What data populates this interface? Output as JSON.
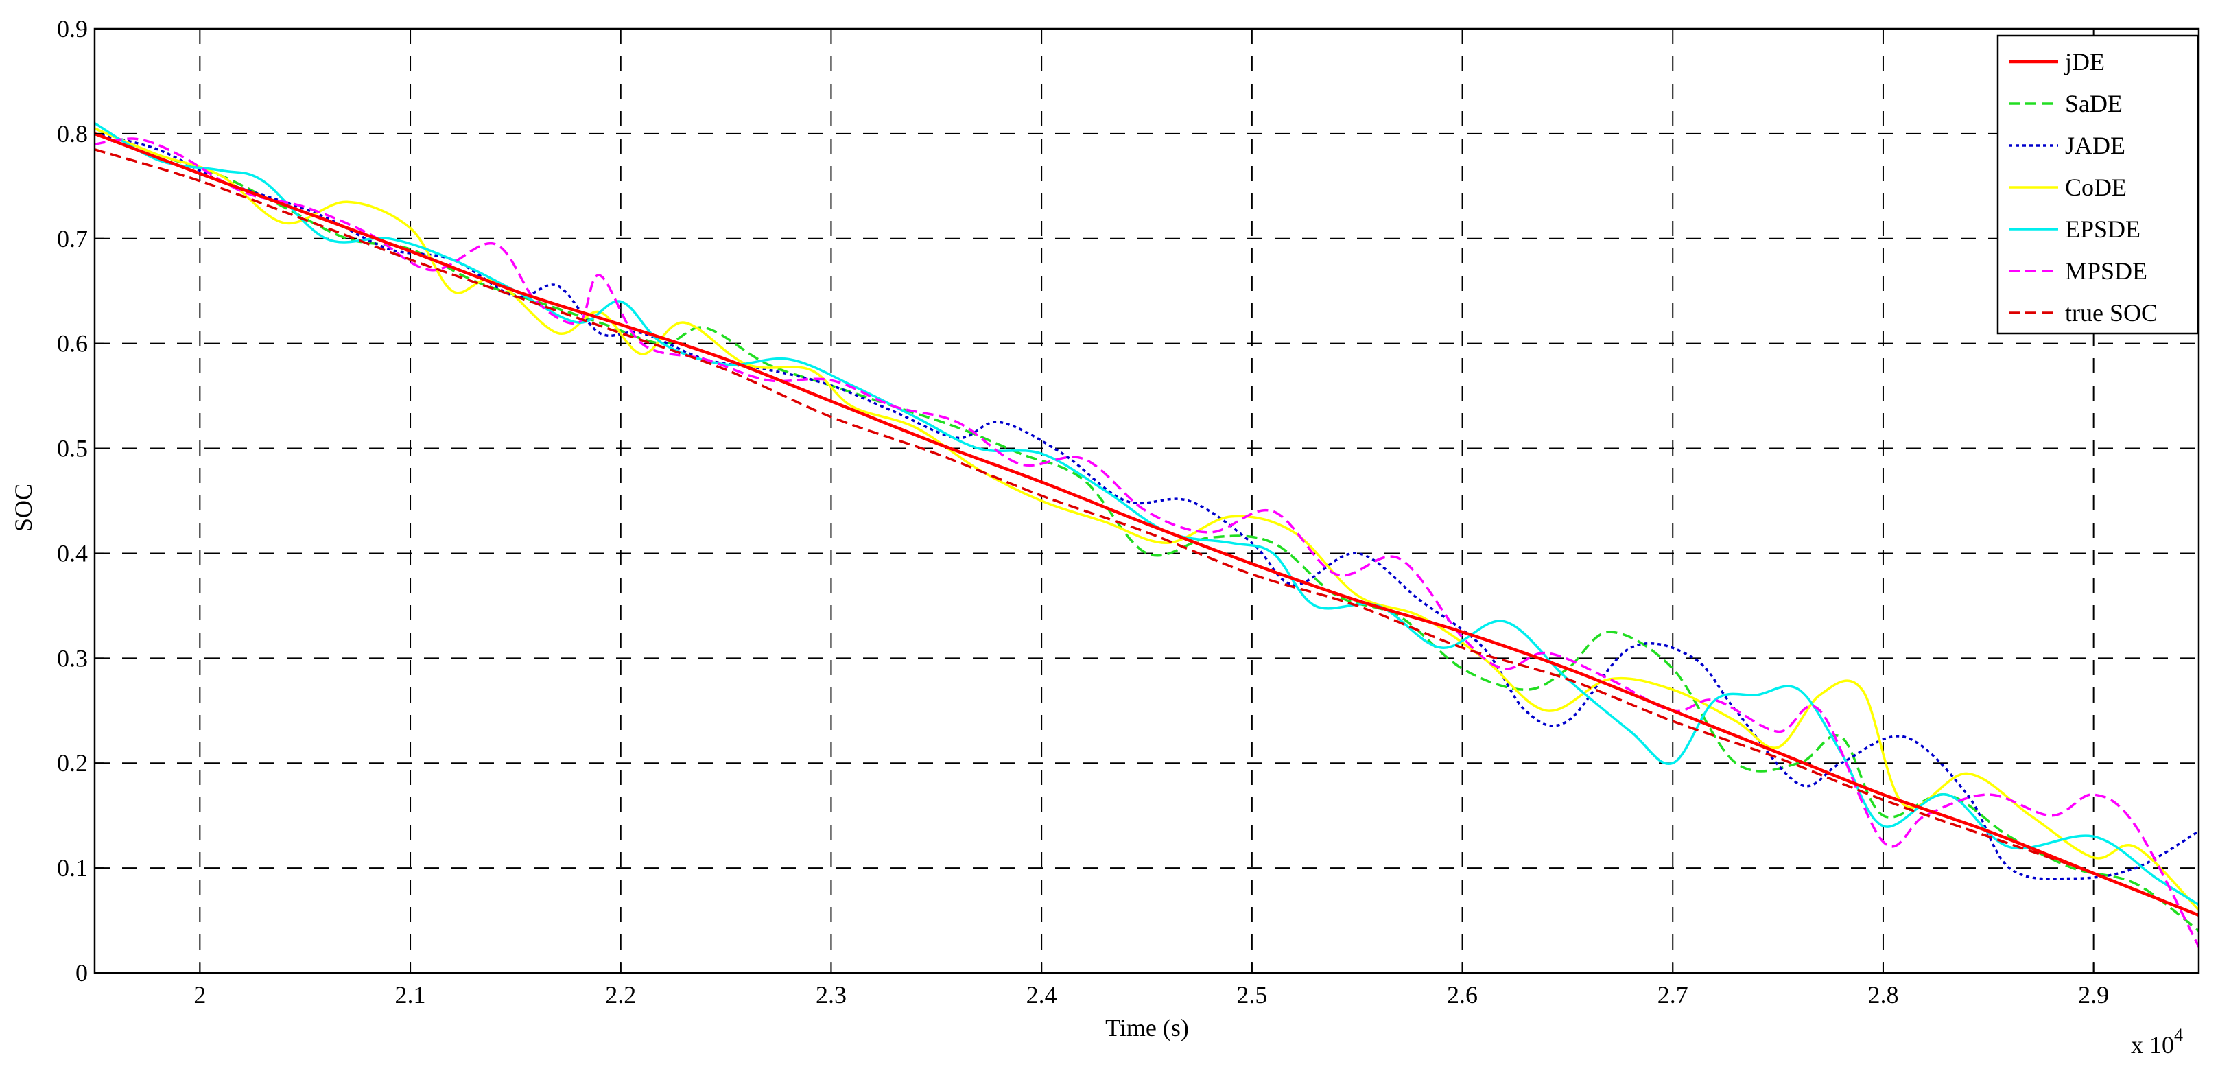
{
  "chart_data": {
    "type": "line",
    "title": "",
    "xlabel": "Time (s)",
    "ylabel": "SOC",
    "x_multiplier": "x 10",
    "x_multiplier_exponent": "4",
    "xlim": [
      1.95,
      2.95
    ],
    "ylim": [
      0,
      0.9
    ],
    "x_ticks": [
      2,
      2.1,
      2.2,
      2.3,
      2.4,
      2.5,
      2.6,
      2.7,
      2.8,
      2.9
    ],
    "x_tick_labels": [
      "2",
      "2.1",
      "2.2",
      "2.3",
      "2.4",
      "2.5",
      "2.6",
      "2.7",
      "2.8",
      "2.9"
    ],
    "y_ticks": [
      0,
      0.1,
      0.2,
      0.3,
      0.4,
      0.5,
      0.6,
      0.7,
      0.8,
      0.9
    ],
    "y_tick_labels": [
      "0",
      "0.1",
      "0.2",
      "0.3",
      "0.4",
      "0.5",
      "0.6",
      "0.7",
      "0.8",
      "0.9"
    ],
    "grid": true,
    "legend_position": "top-right",
    "series": [
      {
        "name": "jDE",
        "color": "#ff0000",
        "dash": "solid",
        "x": [
          1.95,
          2.0,
          2.05,
          2.1,
          2.15,
          2.2,
          2.25,
          2.3,
          2.35,
          2.4,
          2.45,
          2.5,
          2.55,
          2.6,
          2.65,
          2.7,
          2.75,
          2.8,
          2.85,
          2.9,
          2.95
        ],
        "y": [
          0.8,
          0.762,
          0.725,
          0.688,
          0.65,
          0.618,
          0.585,
          0.545,
          0.505,
          0.468,
          0.428,
          0.39,
          0.355,
          0.325,
          0.29,
          0.25,
          0.21,
          0.17,
          0.135,
          0.095,
          0.055
        ]
      },
      {
        "name": "SaDE",
        "color": "#22dd22",
        "dash": "dashed",
        "x": [
          1.95,
          1.98,
          2.01,
          2.04,
          2.07,
          2.1,
          2.13,
          2.16,
          2.19,
          2.22,
          2.24,
          2.27,
          2.3,
          2.33,
          2.36,
          2.39,
          2.42,
          2.45,
          2.48,
          2.51,
          2.54,
          2.57,
          2.6,
          2.63,
          2.65,
          2.67,
          2.7,
          2.73,
          2.76,
          2.78,
          2.8,
          2.83,
          2.86,
          2.89,
          2.92,
          2.95
        ],
        "y": [
          0.805,
          0.78,
          0.76,
          0.73,
          0.7,
          0.69,
          0.66,
          0.64,
          0.62,
          0.6,
          0.615,
          0.58,
          0.56,
          0.54,
          0.52,
          0.495,
          0.47,
          0.4,
          0.415,
          0.41,
          0.36,
          0.34,
          0.29,
          0.27,
          0.29,
          0.325,
          0.29,
          0.2,
          0.2,
          0.225,
          0.15,
          0.17,
          0.13,
          0.1,
          0.085,
          0.04
        ]
      },
      {
        "name": "JADE",
        "color": "#0000cc",
        "dash": "dotted",
        "x": [
          1.95,
          1.98,
          2.01,
          2.04,
          2.06,
          2.09,
          2.12,
          2.15,
          2.17,
          2.19,
          2.21,
          2.24,
          2.27,
          2.3,
          2.33,
          2.36,
          2.38,
          2.41,
          2.44,
          2.47,
          2.5,
          2.52,
          2.55,
          2.58,
          2.61,
          2.63,
          2.65,
          2.68,
          2.71,
          2.73,
          2.76,
          2.78,
          2.81,
          2.84,
          2.86,
          2.89,
          2.92,
          2.95
        ],
        "y": [
          0.8,
          0.785,
          0.755,
          0.735,
          0.72,
          0.69,
          0.68,
          0.645,
          0.655,
          0.61,
          0.61,
          0.585,
          0.575,
          0.56,
          0.535,
          0.51,
          0.525,
          0.495,
          0.45,
          0.45,
          0.41,
          0.37,
          0.4,
          0.355,
          0.31,
          0.25,
          0.24,
          0.31,
          0.3,
          0.25,
          0.18,
          0.2,
          0.225,
          0.17,
          0.1,
          0.09,
          0.1,
          0.135
        ]
      },
      {
        "name": "CoDE",
        "color": "#ffff00",
        "dash": "solid",
        "x": [
          1.95,
          1.98,
          2.01,
          2.04,
          2.07,
          2.1,
          2.12,
          2.14,
          2.17,
          2.19,
          2.21,
          2.23,
          2.26,
          2.29,
          2.31,
          2.34,
          2.37,
          2.4,
          2.43,
          2.46,
          2.49,
          2.52,
          2.55,
          2.58,
          2.61,
          2.64,
          2.67,
          2.7,
          2.73,
          2.75,
          2.77,
          2.79,
          2.81,
          2.84,
          2.87,
          2.9,
          2.92,
          2.95
        ],
        "y": [
          0.805,
          0.78,
          0.76,
          0.715,
          0.735,
          0.71,
          0.65,
          0.66,
          0.61,
          0.63,
          0.59,
          0.62,
          0.58,
          0.575,
          0.54,
          0.52,
          0.48,
          0.45,
          0.43,
          0.41,
          0.435,
          0.42,
          0.36,
          0.34,
          0.3,
          0.25,
          0.28,
          0.27,
          0.24,
          0.215,
          0.265,
          0.27,
          0.16,
          0.19,
          0.15,
          0.11,
          0.12,
          0.06
        ]
      },
      {
        "name": "EPSDE",
        "color": "#00eeee",
        "dash": "solid",
        "x": [
          1.95,
          1.98,
          2.01,
          2.03,
          2.06,
          2.09,
          2.12,
          2.15,
          2.18,
          2.2,
          2.22,
          2.25,
          2.28,
          2.31,
          2.34,
          2.37,
          2.4,
          2.43,
          2.46,
          2.49,
          2.51,
          2.53,
          2.56,
          2.59,
          2.62,
          2.65,
          2.68,
          2.7,
          2.72,
          2.74,
          2.76,
          2.78,
          2.8,
          2.83,
          2.86,
          2.9,
          2.93,
          2.95
        ],
        "y": [
          0.81,
          0.775,
          0.765,
          0.755,
          0.7,
          0.7,
          0.68,
          0.65,
          0.62,
          0.64,
          0.6,
          0.58,
          0.585,
          0.56,
          0.53,
          0.5,
          0.495,
          0.46,
          0.42,
          0.41,
          0.4,
          0.35,
          0.35,
          0.31,
          0.335,
          0.28,
          0.23,
          0.2,
          0.26,
          0.265,
          0.27,
          0.21,
          0.14,
          0.17,
          0.12,
          0.13,
          0.09,
          0.065
        ]
      },
      {
        "name": "MPSDE",
        "color": "#ff00ff",
        "dash": "dashed",
        "x": [
          1.95,
          1.97,
          1.99,
          2.02,
          2.05,
          2.08,
          2.11,
          2.14,
          2.16,
          2.18,
          2.19,
          2.21,
          2.24,
          2.27,
          2.3,
          2.33,
          2.36,
          2.39,
          2.42,
          2.45,
          2.48,
          2.51,
          2.54,
          2.57,
          2.6,
          2.62,
          2.64,
          2.67,
          2.7,
          2.72,
          2.75,
          2.77,
          2.8,
          2.82,
          2.85,
          2.88,
          2.9,
          2.92,
          2.95
        ],
        "y": [
          0.79,
          0.795,
          0.78,
          0.745,
          0.73,
          0.705,
          0.67,
          0.695,
          0.64,
          0.62,
          0.665,
          0.6,
          0.585,
          0.565,
          0.565,
          0.54,
          0.525,
          0.485,
          0.49,
          0.44,
          0.42,
          0.44,
          0.38,
          0.395,
          0.32,
          0.29,
          0.305,
          0.28,
          0.25,
          0.26,
          0.23,
          0.25,
          0.125,
          0.15,
          0.17,
          0.15,
          0.17,
          0.14,
          0.025
        ]
      },
      {
        "name": "true SOC",
        "color": "#dd0000",
        "dash": "dashed",
        "x": [
          1.95,
          2.0,
          2.05,
          2.1,
          2.15,
          2.2,
          2.25,
          2.3,
          2.35,
          2.4,
          2.45,
          2.5,
          2.55,
          2.6,
          2.65,
          2.7,
          2.75,
          2.8,
          2.85,
          2.9,
          2.95
        ],
        "y": [
          0.785,
          0.755,
          0.718,
          0.68,
          0.645,
          0.61,
          0.575,
          0.53,
          0.495,
          0.455,
          0.42,
          0.38,
          0.35,
          0.31,
          0.28,
          0.24,
          0.205,
          0.165,
          0.13,
          0.095,
          0.055
        ]
      }
    ]
  }
}
